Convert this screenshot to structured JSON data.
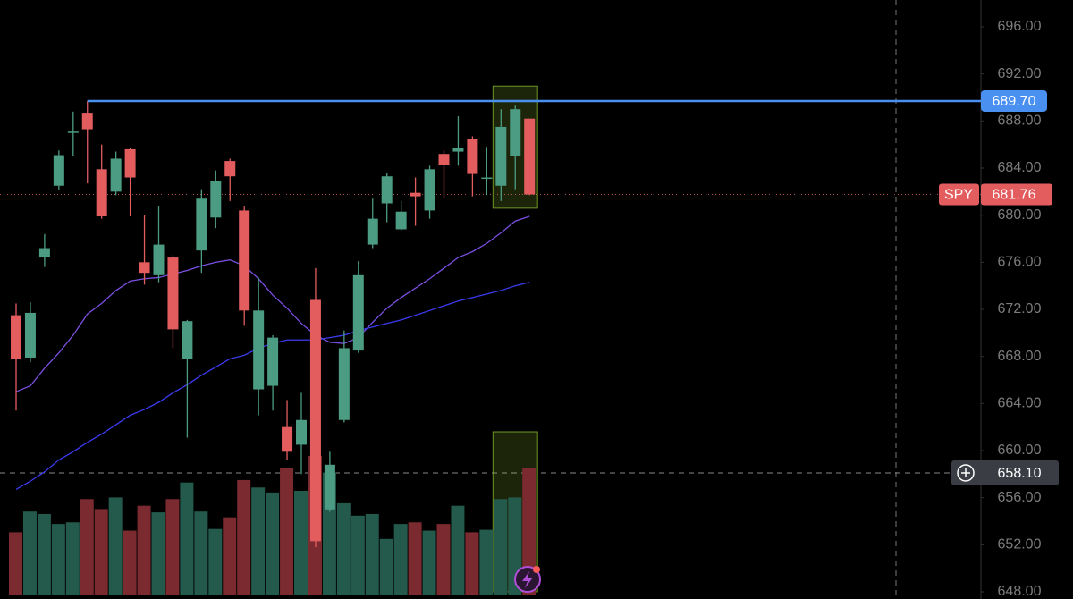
{
  "chart_data": {
    "type": "candlestick",
    "open": [
      671.5,
      667.9,
      676.4,
      682.5,
      687.0,
      688.7,
      683.9,
      682.0,
      685.6,
      676.0,
      674.9,
      676.4,
      667.8,
      677.0,
      679.8,
      684.6,
      680.4,
      665.2,
      665.5,
      662.0,
      660.5,
      672.8,
      655.0,
      662.6,
      668.5,
      677.5,
      681.0,
      678.8,
      681.9,
      680.4,
      685.2,
      685.4,
      686.5,
      683.1,
      682.5,
      685.0,
      688.2
    ],
    "high": [
      672.5,
      672.6,
      678.4,
      685.5,
      688.8,
      689.7,
      686.0,
      685.4,
      685.7,
      680.0,
      680.8,
      676.6,
      671.1,
      682.2,
      683.8,
      684.8,
      680.8,
      674.7,
      669.8,
      664.3,
      664.9,
      675.5,
      659.9,
      670.2,
      676.1,
      681.4,
      683.6,
      681.2,
      683.2,
      684.2,
      685.5,
      688.4,
      686.7,
      685.8,
      689.0,
      689.3,
      688.2
    ],
    "low": [
      663.4,
      667.5,
      675.6,
      682.1,
      685.0,
      682.7,
      679.7,
      681.7,
      679.9,
      674.1,
      674.3,
      668.7,
      661.1,
      675.1,
      678.9,
      681.2,
      670.6,
      663.0,
      663.4,
      659.2,
      658.0,
      651.8,
      654.8,
      662.4,
      668.3,
      677.2,
      679.4,
      678.7,
      679.1,
      679.7,
      681.4,
      684.2,
      681.6,
      681.7,
      681.2,
      682.2,
      681.7
    ],
    "close": [
      667.8,
      671.7,
      677.2,
      685.1,
      687.1,
      687.3,
      679.9,
      684.8,
      683.2,
      675.1,
      677.5,
      670.3,
      671.0,
      681.4,
      682.9,
      683.3,
      671.9,
      671.9,
      669.6,
      659.9,
      662.6,
      652.3,
      658.8,
      668.7,
      674.9,
      679.7,
      683.3,
      680.3,
      681.6,
      683.9,
      684.3,
      685.7,
      683.5,
      683.2,
      687.5,
      689.0,
      681.76
    ],
    "volume": [
      75,
      100,
      97,
      85,
      87,
      115,
      103,
      117,
      77,
      107,
      99,
      115,
      135,
      100,
      79,
      93,
      138,
      129,
      123,
      153,
      125,
      167,
      147,
      110,
      95,
      97,
      67,
      85,
      87,
      77,
      85,
      107,
      75,
      78,
      115,
      117,
      153
    ],
    "up_color": "#4b9c82",
    "down_color": "#e35d5f",
    "volume_up_color": "#235a4c",
    "volume_down_color": "#7b2a2f",
    "moving_averages": [
      {
        "color": "#7a4fe0",
        "values": [
          665.0,
          665.5,
          667.0,
          668.3,
          669.8,
          671.6,
          672.5,
          673.6,
          674.4,
          674.6,
          674.7,
          675.0,
          675.3,
          675.7,
          676.0,
          676.2,
          675.7,
          674.6,
          673.2,
          672.1,
          670.8,
          669.8,
          669.2,
          669.1,
          669.6,
          670.9,
          672.1,
          673.0,
          673.8,
          674.6,
          675.5,
          676.4,
          676.9,
          677.6,
          678.5,
          679.5,
          679.9
        ]
      },
      {
        "color": "#3b3bf0",
        "values": [
          656.7,
          657.4,
          658.2,
          659.2,
          659.9,
          660.7,
          661.4,
          662.2,
          663.0,
          663.5,
          664.1,
          664.9,
          665.6,
          666.4,
          667.1,
          667.8,
          668.1,
          668.7,
          669.1,
          669.4,
          669.4,
          669.4,
          669.6,
          669.8,
          670.2,
          670.5,
          670.8,
          671.1,
          671.5,
          671.9,
          672.3,
          672.7,
          673.0,
          673.3,
          673.6,
          674.0,
          674.3
        ]
      }
    ],
    "ylim": [
      648,
      696
    ],
    "yticks": [
      {
        "value": 648,
        "label": "648.00"
      },
      {
        "value": 652,
        "label": "652.00"
      },
      {
        "value": 656,
        "label": "656.00"
      },
      {
        "value": 660,
        "label": "660.00"
      },
      {
        "value": 664,
        "label": "664.00"
      },
      {
        "value": 668,
        "label": "668.00"
      },
      {
        "value": 672,
        "label": "672.00"
      },
      {
        "value": 676,
        "label": "676.00"
      },
      {
        "value": 680,
        "label": "680.00"
      },
      {
        "value": 684,
        "label": "684.00"
      },
      {
        "value": 688,
        "label": "688.00"
      },
      {
        "value": 692,
        "label": "692.00"
      },
      {
        "value": 696,
        "label": "696.00"
      }
    ],
    "horizontal_line": {
      "value": 689.7,
      "label": "689.70",
      "color": "#4a90f0"
    },
    "last_price": {
      "symbol": "SPY",
      "value": 681.76,
      "label": "681.76",
      "color": "#e35d5f"
    },
    "crosshair": {
      "value": 658.1,
      "label": "658.10"
    },
    "highlight": {
      "from": 34,
      "to": 36,
      "color": "#9acd32"
    }
  }
}
